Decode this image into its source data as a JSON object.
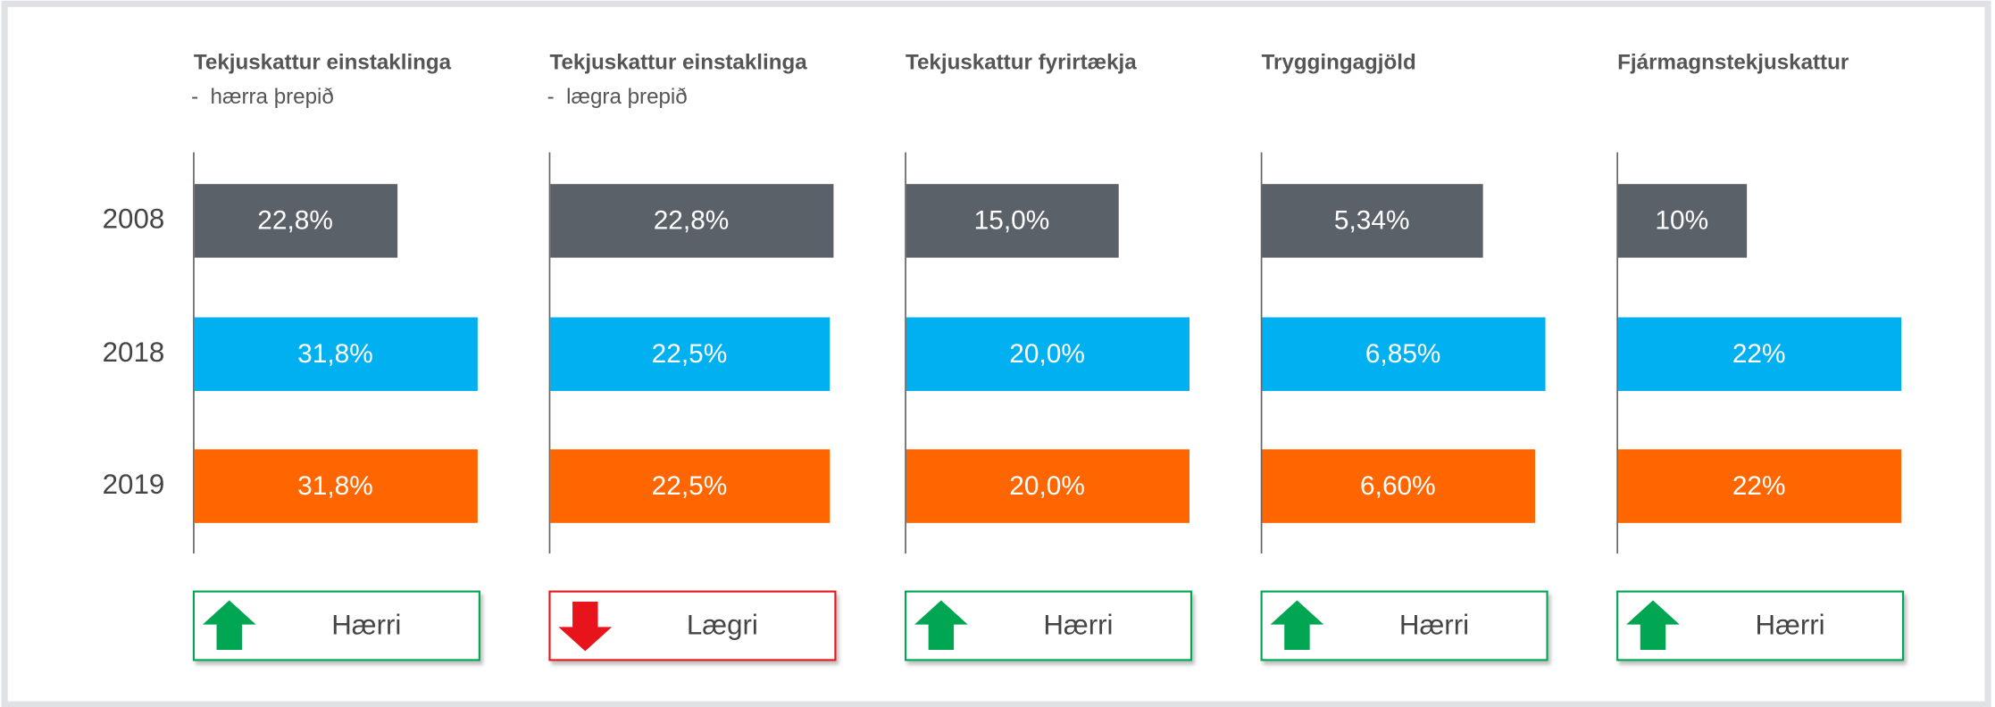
{
  "chart_data": [
    {
      "type": "bar",
      "title": "Tekjuskattur einstaklinga",
      "subtitle": "-  hærra þrepið",
      "categories": [
        "2008",
        "2018",
        "2019"
      ],
      "values": [
        22.8,
        31.8,
        31.8
      ],
      "value_labels": [
        "22,8%",
        "31,8%",
        "31,8%"
      ],
      "colors": [
        "#5b6169",
        "#00b0f0",
        "#ff6600"
      ],
      "badge": {
        "label": "Hærri",
        "direction": "up",
        "color": "#00a651"
      }
    },
    {
      "type": "bar",
      "title": "Tekjuskattur einstaklinga",
      "subtitle": "-  lægra þrepið",
      "values": [
        22.8,
        22.5,
        22.5
      ],
      "value_labels": [
        "22,8%",
        "22,5%",
        "22,5%"
      ],
      "colors": [
        "#5b6169",
        "#00b0f0",
        "#ff6600"
      ],
      "badge": {
        "label": "Lægri",
        "direction": "down",
        "color": "#e8141b"
      }
    },
    {
      "type": "bar",
      "title": "Tekjuskattur fyrirtækja",
      "values": [
        15.0,
        20.0,
        20.0
      ],
      "value_labels": [
        "15,0%",
        "20,0%",
        "20,0%"
      ],
      "colors": [
        "#5b6169",
        "#00b0f0",
        "#ff6600"
      ],
      "badge": {
        "label": "Hærri",
        "direction": "up",
        "color": "#00a651"
      }
    },
    {
      "type": "bar",
      "title": "Tryggingagjöld",
      "values": [
        5.34,
        6.85,
        6.6
      ],
      "value_labels": [
        "5,34%",
        "6,85%",
        "6,60%"
      ],
      "colors": [
        "#5b6169",
        "#00b0f0",
        "#ff6600"
      ],
      "badge": {
        "label": "Hærri",
        "direction": "up",
        "color": "#00a651"
      }
    },
    {
      "type": "bar",
      "title": "Fjármagnstekjuskattur",
      "values": [
        10,
        22,
        22
      ],
      "value_labels": [
        "10%",
        "22%",
        "22%"
      ],
      "colors": [
        "#5b6169",
        "#00b0f0",
        "#ff6600"
      ],
      "badge": {
        "label": "Hærri",
        "direction": "up",
        "color": "#00a651"
      }
    }
  ]
}
